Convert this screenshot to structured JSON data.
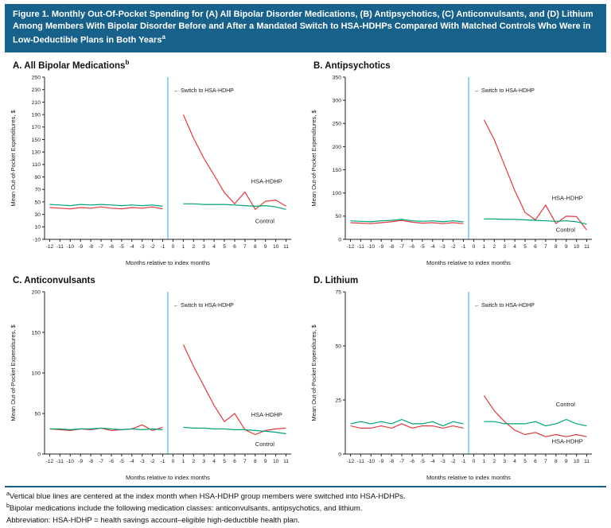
{
  "figure": {
    "title": "Figure 1. Monthly Out-Of-Pocket Spending for (A) All Bipolar Disorder Medications, (B) Antipsychotics, (C) Anticonvulsants, and (D) Lithium Among Members With Bipolar Disorder Before and After a Mandated Switch to HSA-HDHPs Compared With Matched Controls Who Were in Low-Deductible Plans in Both Years",
    "title_sup": "a"
  },
  "colors": {
    "banner_bg": "#17618A",
    "banner_text": "#FFFFFF",
    "hsa_hdhp_line": "#DE3B3E",
    "control_line": "#00A278",
    "index_line": "#7ED2F2",
    "rule": "#17618A",
    "axis": "#222222"
  },
  "footnotes": [
    {
      "sup": "a",
      "text": "Vertical blue lines are centered at the index month when HSA-HDHP group members were switched into HSA-HDHPs."
    },
    {
      "sup": "b",
      "text": "Bipolar medications include the following medication classes: anticonvulsants, antipsychotics, and lithium."
    },
    {
      "sup": "",
      "text": "Abbreviation: HSA-HDHP = health savings account–eligible high-deductible health plan."
    }
  ],
  "chart_data": [
    {
      "type": "line",
      "title": "A. All Bipolar Medications",
      "title_sup": "b",
      "ylabel": "Mean Out-of-Pocket Expenditures, $",
      "xlabel": "Months relative to index months",
      "ylim": [
        -10,
        250
      ],
      "yticks": [
        -10,
        10,
        30,
        50,
        70,
        90,
        110,
        130,
        150,
        170,
        190,
        210,
        230,
        250
      ],
      "xticks": [
        -12,
        -11,
        -10,
        -9,
        -8,
        -7,
        -6,
        -5,
        -4,
        -3,
        -2,
        -1,
        0,
        1,
        2,
        3,
        4,
        5,
        6,
        7,
        8,
        9,
        10,
        11
      ],
      "vline_x": -0.5,
      "annotation": "← Switch to HSA-HDHP",
      "legend_position": "inline-right",
      "grid": false,
      "series": [
        {
          "name": "HSA-HDHP",
          "color": "#DE3B3E",
          "pre": [
            41,
            40,
            39,
            41,
            40,
            42,
            40,
            39,
            41,
            40,
            42,
            39
          ],
          "post": [
            190,
            152,
            120,
            93,
            65,
            47,
            66,
            38,
            51,
            53,
            43
          ],
          "label_x": 7.6,
          "label_y": 80
        },
        {
          "name": "Control",
          "color": "#00A278",
          "pre": [
            46,
            45,
            44,
            46,
            45,
            46,
            45,
            44,
            45,
            44,
            45,
            43
          ],
          "post": [
            47,
            47,
            46,
            46,
            46,
            45,
            44,
            43,
            44,
            42,
            38
          ],
          "label_x": 8.0,
          "label_y": 16
        }
      ]
    },
    {
      "type": "line",
      "title": "B. Antipsychotics",
      "ylabel": "Mean Out-of-Pocket Expenditures, $",
      "xlabel": "Months relative to index months",
      "ylim": [
        0,
        350
      ],
      "yticks": [
        0,
        50,
        100,
        150,
        200,
        250,
        300,
        350
      ],
      "xticks": [
        -12,
        -11,
        -10,
        -9,
        -8,
        -7,
        -6,
        -5,
        -4,
        -3,
        -2,
        -1,
        0,
        1,
        2,
        3,
        4,
        5,
        6,
        7,
        8,
        9,
        10,
        11
      ],
      "vline_x": -0.5,
      "annotation": "← Switch to HSA-HDHP",
      "legend_position": "inline-right",
      "grid": false,
      "series": [
        {
          "name": "HSA-HDHP",
          "color": "#DE3B3E",
          "pre": [
            36,
            35,
            34,
            36,
            38,
            41,
            37,
            35,
            36,
            34,
            36,
            34
          ],
          "post": [
            258,
            215,
            160,
            105,
            58,
            42,
            74,
            34,
            50,
            49,
            20
          ],
          "label_x": 7.6,
          "label_y": 85
        },
        {
          "name": "Control",
          "color": "#00A278",
          "pre": [
            40,
            39,
            38,
            40,
            41,
            43,
            40,
            39,
            40,
            38,
            40,
            38
          ],
          "post": [
            44,
            44,
            43,
            43,
            42,
            41,
            40,
            39,
            40,
            38,
            33
          ],
          "label_x": 8.0,
          "label_y": 16
        }
      ]
    },
    {
      "type": "line",
      "title": "C. Anticonvulsants",
      "ylabel": "Mean Out-of-Pocket Expenditures, $",
      "xlabel": "Months relative to index months",
      "ylim": [
        0,
        200
      ],
      "yticks": [
        0,
        50,
        100,
        150,
        200
      ],
      "xticks": [
        -12,
        -11,
        -10,
        -9,
        -8,
        -7,
        -6,
        -5,
        -4,
        -3,
        -2,
        -1,
        0,
        1,
        2,
        3,
        4,
        5,
        6,
        7,
        8,
        9,
        10,
        11
      ],
      "vline_x": -0.5,
      "annotation": "← Switch to HSA-HDHP",
      "legend_position": "inline-right",
      "grid": false,
      "series": [
        {
          "name": "HSA-HDHP",
          "color": "#DE3B3E",
          "pre": [
            31,
            30,
            29,
            31,
            30,
            32,
            29,
            30,
            31,
            36,
            29,
            33
          ],
          "post": [
            135,
            108,
            84,
            60,
            40,
            50,
            30,
            24,
            29,
            31,
            32
          ],
          "label_x": 7.6,
          "label_y": 46
        },
        {
          "name": "Control",
          "color": "#00A278",
          "pre": [
            31,
            31,
            30,
            31,
            31,
            32,
            31,
            30,
            31,
            30,
            31,
            30
          ],
          "post": [
            33,
            32,
            32,
            31,
            31,
            30,
            30,
            29,
            28,
            27,
            25
          ],
          "label_x": 8.0,
          "label_y": 10
        }
      ]
    },
    {
      "type": "line",
      "title": "D. Lithium",
      "ylabel": "Mean Out-of-Pocket Expenditures, $",
      "xlabel": "Months relative to index months",
      "ylim": [
        0,
        75
      ],
      "yticks": [
        0,
        25,
        50,
        75
      ],
      "xticks": [
        -12,
        -11,
        -10,
        -9,
        -8,
        -7,
        -6,
        -5,
        -4,
        -3,
        -2,
        -1,
        0,
        1,
        2,
        3,
        4,
        5,
        6,
        7,
        8,
        9,
        10,
        11
      ],
      "vline_x": -0.5,
      "annotation": "← Switch to HSA-HDHP",
      "legend_position": "inline-right",
      "grid": false,
      "series": [
        {
          "name": "HSA-HDHP",
          "color": "#DE3B3E",
          "pre": [
            13,
            12,
            12,
            13,
            12,
            14,
            12,
            13,
            13,
            12,
            13,
            12
          ],
          "post": [
            27,
            20,
            15,
            11,
            9,
            10,
            8,
            9,
            8,
            9,
            8
          ],
          "label_x": 7.6,
          "label_y": 5
        },
        {
          "name": "Control",
          "color": "#00A278",
          "pre": [
            14,
            15,
            14,
            15,
            14,
            16,
            14,
            14,
            15,
            13,
            15,
            14
          ],
          "post": [
            15,
            15,
            14,
            14,
            14,
            15,
            13,
            14,
            16,
            14,
            13
          ],
          "label_x": 8.0,
          "label_y": 22
        }
      ]
    }
  ]
}
